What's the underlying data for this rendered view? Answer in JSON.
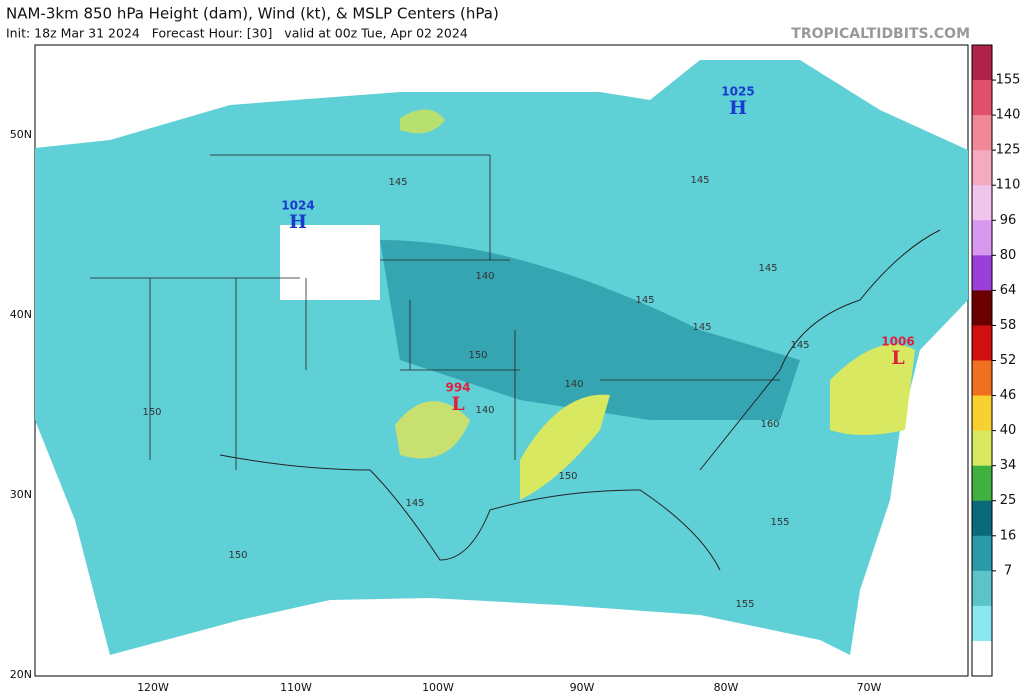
{
  "header": {
    "title": "NAM-3km 850 hPa Height (dam), Wind (kt), & MSLP Centers (hPa)",
    "subtitle": "Init: 18z Mar 31 2024   Forecast Hour: [30]   valid at 00z Tue, Apr 02 2024",
    "site": "TROPICALTIDBITS.COM"
  },
  "map": {
    "lat_labels": [
      "50N",
      "40N",
      "30N",
      "20N"
    ],
    "lon_labels": [
      "120W",
      "110W",
      "100W",
      "90W",
      "80W",
      "70W"
    ],
    "centers": [
      {
        "value": "1025",
        "symbol": "H"
      },
      {
        "value": "1024",
        "symbol": "H"
      },
      {
        "value": "994",
        "symbol": "L"
      },
      {
        "value": "1006",
        "symbol": "L"
      }
    ],
    "contour_labels": [
      "145",
      "140",
      "145",
      "145",
      "145",
      "140",
      "145",
      "140",
      "150",
      "150",
      "150",
      "145",
      "150",
      "155",
      "160",
      "155",
      "145"
    ]
  },
  "colorbar": {
    "ticks": [
      155,
      140,
      125,
      110,
      96,
      80,
      64,
      58,
      52,
      46,
      40,
      34,
      25,
      16,
      7
    ],
    "colors": [
      "#b0224a",
      "#e0506a",
      "#f08898",
      "#f4aac0",
      "#f0c4ec",
      "#d898f0",
      "#9a40d8",
      "#6a0000",
      "#d01010",
      "#f07020",
      "#f8d030",
      "#d8e860",
      "#40b040",
      "#0a6a7a",
      "#2a9aa8",
      "#5cc4c8",
      "#8ae8f0",
      "#ffffff"
    ]
  }
}
